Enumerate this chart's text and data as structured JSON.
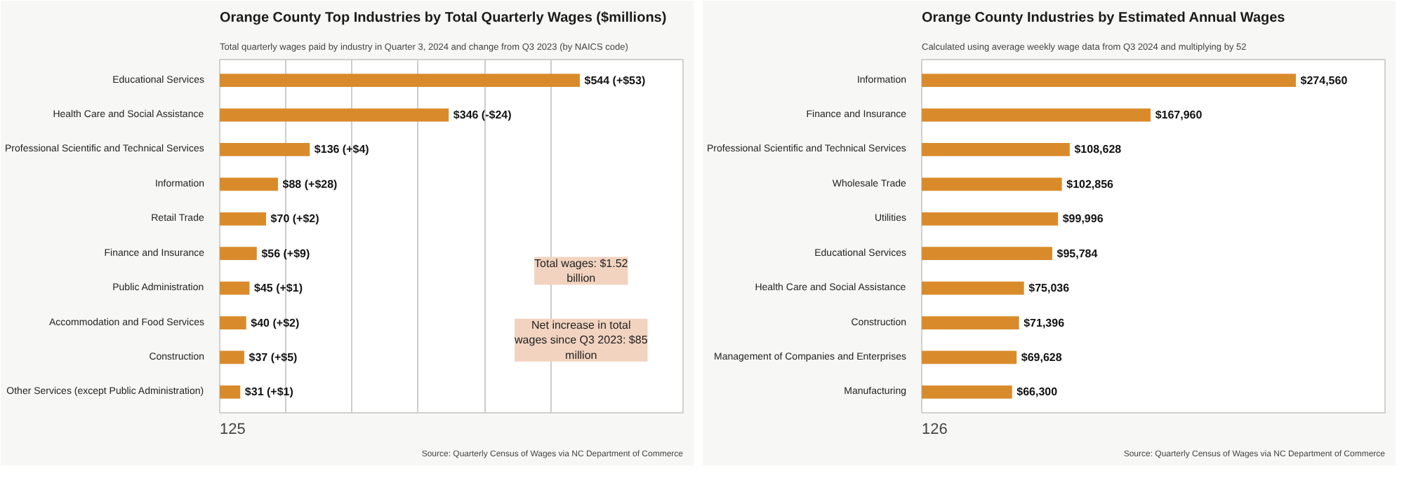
{
  "chart_data": [
    {
      "type": "bar",
      "orientation": "horizontal",
      "title": "Orange County Top Industries by Total Quarterly Wages ($millions)",
      "subtitle": "Total quarterly wages paid by industry in Quarter 3, 2024 and change from Q3 2023 (by NAICS code)",
      "categories": [
        "Educational Services",
        "Health Care and Social Assistance",
        "Professional Scientific and Technical Services",
        "Information",
        "Retail Trade",
        "Finance and Insurance",
        "Public Administration",
        "Accommodation and Food Services",
        "Construction",
        "Other Services (except Public Administration)"
      ],
      "values": [
        544,
        346,
        136,
        88,
        70,
        56,
        45,
        40,
        37,
        31
      ],
      "value_labels": [
        "$544 (+$53)",
        "$346 (-$24)",
        "$136 (+$4)",
        "$88 (+$28)",
        "$70 (+$2)",
        "$56 (+$9)",
        "$45 (+$1)",
        "$40 (+$2)",
        "$37 (+$5)",
        "$31 (+$1)"
      ],
      "color": "#d98b2b",
      "xlim": [
        0,
        700
      ],
      "xticks": [
        {
          "value": 100,
          "label": null
        },
        {
          "value": 200,
          "label": null
        },
        {
          "value": 300,
          "label": null
        },
        {
          "value": 400,
          "label": null
        },
        {
          "value": 500,
          "label": null
        }
      ],
      "grid": "x",
      "tick_labels": "y",
      "annotations": [
        "Total wages: $1.52 billion",
        "Net increase in total wages since Q3 2023: $85 million",
        "Source: Quarterly Census of Wages via NC Department of Commerce",
        "125"
      ]
    },
    {
      "type": "bar",
      "orientation": "horizontal",
      "title": "Orange County Industries by Estimated Annual Wages",
      "subtitle": "Calculated using average weekly wage data from Q3 2024 and multiplying by 52",
      "categories": [
        "Information",
        "Finance and Insurance",
        "Professional Scientific and Technical Services",
        "Wholesale Trade",
        "Utilities",
        "Educational Services",
        "Health Care and Social Assistance",
        "Construction",
        "Management of Companies and Enterprises",
        "Manufacturing"
      ],
      "values": [
        274560,
        167960,
        108628,
        102856,
        99996,
        95784,
        75036,
        71396,
        69628,
        66300
      ],
      "value_labels": [
        "$274,560",
        "$167,960",
        "$108,628",
        "$102,856",
        "$99,996",
        "$95,784",
        "$75,036",
        "$71,396",
        "$69,628",
        "$66,300"
      ],
      "color": "#d98b2b",
      "xlim": [
        0,
        340000
      ],
      "tick_labels": "y",
      "annotations": [
        "Source: Quarterly Census of Wages via NC Department of Commerce",
        "126"
      ]
    }
  ]
}
